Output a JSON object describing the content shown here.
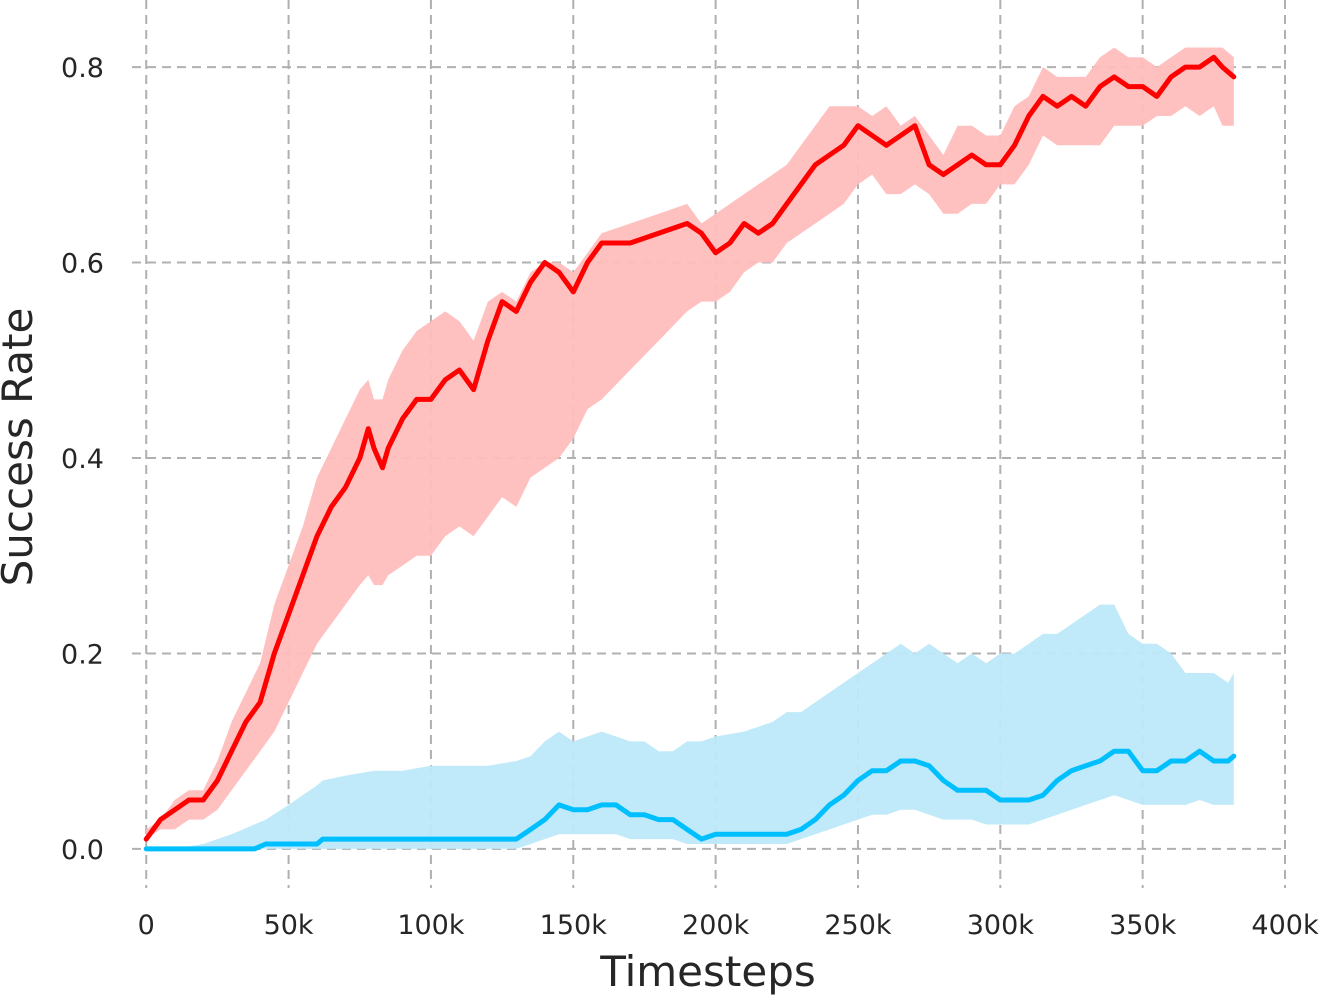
{
  "chart_data": {
    "type": "line",
    "title": "",
    "xlabel": "Timesteps",
    "ylabel": "Success Rate",
    "xlim": [
      -5000,
      400000
    ],
    "ylim": [
      -0.04,
      0.84
    ],
    "xticks": [
      0,
      50000,
      100000,
      150000,
      200000,
      250000,
      300000,
      350000,
      400000
    ],
    "xtick_labels": [
      "0",
      "50k",
      "100k",
      "150k",
      "200k",
      "250k",
      "300k",
      "350k",
      "400k"
    ],
    "yticks": [
      0.0,
      0.2,
      0.4,
      0.6,
      0.8
    ],
    "ytick_labels": [
      "0.0",
      "0.2",
      "0.4",
      "0.6",
      "0.8"
    ],
    "grid": true,
    "legend": "none",
    "series": [
      {
        "color": "#ff0000",
        "band_color": "#ffbdbd",
        "x": [
          0,
          5000,
          10000,
          15000,
          20000,
          25000,
          30000,
          35000,
          40000,
          45000,
          50000,
          55000,
          60000,
          65000,
          70000,
          75000,
          78000,
          80000,
          83000,
          85000,
          90000,
          95000,
          100000,
          105000,
          110000,
          115000,
          120000,
          125000,
          130000,
          135000,
          140000,
          145000,
          150000,
          155000,
          160000,
          170000,
          180000,
          190000,
          195000,
          200000,
          205000,
          210000,
          215000,
          220000,
          225000,
          230000,
          235000,
          240000,
          245000,
          250000,
          255000,
          260000,
          265000,
          270000,
          275000,
          280000,
          285000,
          290000,
          295000,
          300000,
          305000,
          310000,
          315000,
          320000,
          325000,
          330000,
          335000,
          340000,
          345000,
          350000,
          355000,
          360000,
          365000,
          370000,
          375000,
          378000,
          382000
        ],
        "mean": [
          0.01,
          0.03,
          0.04,
          0.05,
          0.05,
          0.07,
          0.1,
          0.13,
          0.15,
          0.2,
          0.24,
          0.28,
          0.32,
          0.35,
          0.37,
          0.4,
          0.43,
          0.41,
          0.39,
          0.41,
          0.44,
          0.46,
          0.46,
          0.48,
          0.49,
          0.47,
          0.52,
          0.56,
          0.55,
          0.58,
          0.6,
          0.59,
          0.57,
          0.6,
          0.62,
          0.62,
          0.63,
          0.64,
          0.63,
          0.61,
          0.62,
          0.64,
          0.63,
          0.64,
          0.66,
          0.68,
          0.7,
          0.71,
          0.72,
          0.74,
          0.73,
          0.72,
          0.73,
          0.74,
          0.7,
          0.69,
          0.7,
          0.71,
          0.7,
          0.7,
          0.72,
          0.75,
          0.77,
          0.76,
          0.77,
          0.76,
          0.78,
          0.79,
          0.78,
          0.78,
          0.77,
          0.79,
          0.8,
          0.8,
          0.81,
          0.8,
          0.79
        ],
        "lower": [
          0.01,
          0.02,
          0.02,
          0.03,
          0.03,
          0.04,
          0.06,
          0.08,
          0.1,
          0.12,
          0.15,
          0.18,
          0.21,
          0.23,
          0.25,
          0.27,
          0.28,
          0.27,
          0.27,
          0.28,
          0.29,
          0.3,
          0.3,
          0.32,
          0.33,
          0.32,
          0.34,
          0.36,
          0.35,
          0.38,
          0.39,
          0.4,
          0.42,
          0.45,
          0.46,
          0.49,
          0.52,
          0.55,
          0.56,
          0.56,
          0.57,
          0.59,
          0.6,
          0.6,
          0.62,
          0.63,
          0.64,
          0.65,
          0.66,
          0.68,
          0.69,
          0.67,
          0.67,
          0.68,
          0.67,
          0.65,
          0.65,
          0.66,
          0.66,
          0.68,
          0.68,
          0.7,
          0.73,
          0.72,
          0.72,
          0.72,
          0.72,
          0.74,
          0.74,
          0.74,
          0.75,
          0.75,
          0.76,
          0.75,
          0.76,
          0.74,
          0.74
        ],
        "upper": [
          0.02,
          0.03,
          0.05,
          0.06,
          0.06,
          0.09,
          0.13,
          0.16,
          0.19,
          0.25,
          0.29,
          0.33,
          0.38,
          0.41,
          0.44,
          0.47,
          0.48,
          0.46,
          0.46,
          0.48,
          0.51,
          0.53,
          0.54,
          0.55,
          0.54,
          0.52,
          0.56,
          0.57,
          0.56,
          0.59,
          0.6,
          0.6,
          0.59,
          0.61,
          0.63,
          0.64,
          0.65,
          0.66,
          0.64,
          0.65,
          0.66,
          0.67,
          0.68,
          0.69,
          0.7,
          0.72,
          0.74,
          0.76,
          0.76,
          0.76,
          0.75,
          0.76,
          0.74,
          0.75,
          0.73,
          0.71,
          0.74,
          0.74,
          0.73,
          0.73,
          0.76,
          0.77,
          0.8,
          0.79,
          0.79,
          0.79,
          0.81,
          0.82,
          0.81,
          0.81,
          0.8,
          0.81,
          0.82,
          0.82,
          0.82,
          0.82,
          0.81
        ]
      },
      {
        "color": "#00bfff",
        "band_color": "#bde9f9",
        "x": [
          0,
          10000,
          20000,
          30000,
          38000,
          42000,
          50000,
          60000,
          62000,
          70000,
          80000,
          90000,
          100000,
          110000,
          120000,
          130000,
          135000,
          140000,
          145000,
          150000,
          155000,
          160000,
          165000,
          170000,
          175000,
          180000,
          185000,
          190000,
          195000,
          200000,
          210000,
          220000,
          225000,
          230000,
          235000,
          240000,
          245000,
          250000,
          255000,
          260000,
          265000,
          270000,
          275000,
          280000,
          285000,
          290000,
          295000,
          300000,
          305000,
          310000,
          315000,
          320000,
          325000,
          330000,
          335000,
          340000,
          345000,
          350000,
          355000,
          360000,
          365000,
          370000,
          375000,
          380000,
          382000
        ],
        "mean": [
          0.0,
          0.0,
          0.0,
          0.0,
          0.0,
          0.005,
          0.005,
          0.005,
          0.01,
          0.01,
          0.01,
          0.01,
          0.01,
          0.01,
          0.01,
          0.01,
          0.02,
          0.03,
          0.045,
          0.04,
          0.04,
          0.045,
          0.045,
          0.035,
          0.035,
          0.03,
          0.03,
          0.02,
          0.01,
          0.015,
          0.015,
          0.015,
          0.015,
          0.02,
          0.03,
          0.045,
          0.055,
          0.07,
          0.08,
          0.08,
          0.09,
          0.09,
          0.085,
          0.07,
          0.06,
          0.06,
          0.06,
          0.05,
          0.05,
          0.05,
          0.055,
          0.07,
          0.08,
          0.085,
          0.09,
          0.1,
          0.1,
          0.08,
          0.08,
          0.09,
          0.09,
          0.1,
          0.09,
          0.09,
          0.095
        ],
        "lower": [
          0.0,
          0.0,
          0.0,
          0.0,
          0.0,
          0.0,
          0.0,
          0.0,
          0.0,
          0.0,
          0.0,
          0.0,
          0.0,
          0.0,
          0.0,
          0.0,
          0.005,
          0.01,
          0.015,
          0.015,
          0.015,
          0.015,
          0.015,
          0.01,
          0.01,
          0.01,
          0.01,
          0.005,
          0.005,
          0.005,
          0.005,
          0.005,
          0.005,
          0.01,
          0.015,
          0.02,
          0.025,
          0.03,
          0.035,
          0.035,
          0.04,
          0.04,
          0.035,
          0.03,
          0.03,
          0.03,
          0.025,
          0.025,
          0.025,
          0.025,
          0.03,
          0.035,
          0.04,
          0.045,
          0.05,
          0.055,
          0.05,
          0.045,
          0.045,
          0.045,
          0.045,
          0.05,
          0.045,
          0.045,
          0.045
        ],
        "upper": [
          0.0,
          0.0,
          0.005,
          0.015,
          0.025,
          0.03,
          0.045,
          0.065,
          0.07,
          0.075,
          0.08,
          0.08,
          0.085,
          0.085,
          0.085,
          0.09,
          0.095,
          0.11,
          0.12,
          0.11,
          0.115,
          0.12,
          0.115,
          0.11,
          0.11,
          0.1,
          0.1,
          0.11,
          0.11,
          0.115,
          0.12,
          0.13,
          0.14,
          0.14,
          0.15,
          0.16,
          0.17,
          0.18,
          0.19,
          0.2,
          0.21,
          0.2,
          0.21,
          0.2,
          0.19,
          0.2,
          0.19,
          0.2,
          0.2,
          0.21,
          0.22,
          0.22,
          0.23,
          0.24,
          0.25,
          0.25,
          0.22,
          0.21,
          0.21,
          0.2,
          0.18,
          0.18,
          0.18,
          0.17,
          0.18
        ]
      }
    ]
  }
}
